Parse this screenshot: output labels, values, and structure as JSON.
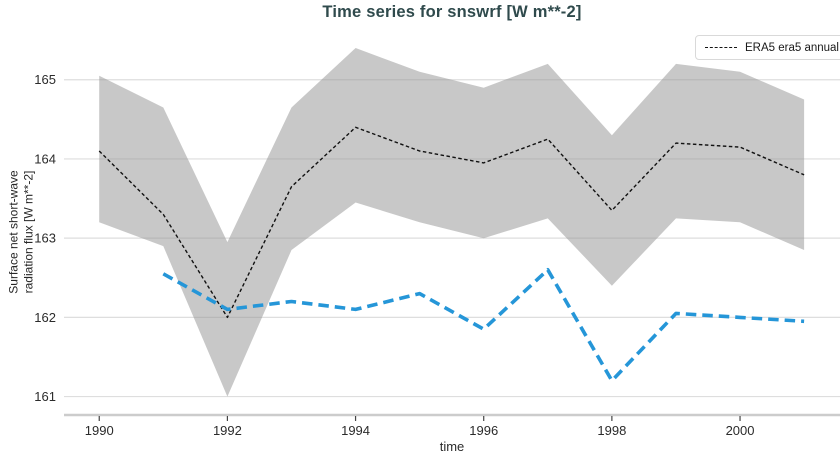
{
  "figure": {
    "title": "Time series for snswrf [W m**-2]"
  },
  "legend": {
    "entries": [
      {
        "label": "ERA5 era5 annual",
        "line_style": "dashed",
        "color": "#141414"
      }
    ]
  },
  "colors": {
    "title": "#2f4a4c",
    "tick_text": "#2b2b2b",
    "grid": "#dedede",
    "axis_line": "#cccccc",
    "tick_mark": "#444444",
    "era5_line": "#111111",
    "blue_line": "#2596d8",
    "band_fill": "rgba(145,145,145,0.5)"
  },
  "chart_data": {
    "type": "line",
    "title": "Time series for snswrf [W m**-2]",
    "xlabel": "time",
    "ylabel_lines": [
      "Surface net short-wave",
      "radiation flux [W m**-2]"
    ],
    "xlim": [
      1989.45,
      2001.56
    ],
    "ylim": [
      160.78,
      165.59
    ],
    "xticks": [
      1990,
      1992,
      1994,
      1996,
      1998,
      2000
    ],
    "yticks": [
      161,
      162,
      163,
      164,
      165
    ],
    "grid": "horizontal",
    "legend_position": "top-right",
    "series": [
      {
        "id": "era5-annual",
        "label": "ERA5 era5 annual",
        "color": "#111111",
        "dash": [
          3.5,
          2.5
        ],
        "width": 1.4,
        "x": [
          1990,
          1991,
          1992,
          1993,
          1994,
          1995,
          1996,
          1997,
          1998,
          1999,
          2000,
          2001
        ],
        "y": [
          164.1,
          163.3,
          162.0,
          163.65,
          164.4,
          164.1,
          163.95,
          164.25,
          163.35,
          164.2,
          164.15,
          163.8
        ]
      },
      {
        "id": "blue-annual",
        "label": "",
        "color": "#2596d8",
        "dash": [
          10.5,
          6
        ],
        "width": 3.6,
        "x": [
          1991,
          1992,
          1993,
          1994,
          1995,
          1996,
          1997,
          1998,
          1999,
          2000,
          2001
        ],
        "y": [
          162.55,
          162.1,
          162.2,
          162.1,
          162.3,
          161.85,
          162.6,
          161.2,
          162.05,
          162.0,
          161.95
        ]
      }
    ],
    "band": {
      "series": "era5-annual",
      "color": "rgba(145,145,145,0.5)",
      "x": [
        1990,
        1991,
        1992,
        1993,
        1994,
        1995,
        1996,
        1997,
        1998,
        1999,
        2000,
        2001
      ],
      "lower": [
        163.2,
        162.9,
        161.0,
        162.85,
        163.45,
        163.2,
        163.0,
        163.25,
        162.4,
        163.25,
        163.2,
        162.85
      ],
      "upper": [
        165.05,
        164.65,
        162.95,
        164.65,
        165.4,
        165.1,
        164.9,
        165.2,
        164.3,
        165.2,
        165.1,
        164.75
      ]
    }
  }
}
